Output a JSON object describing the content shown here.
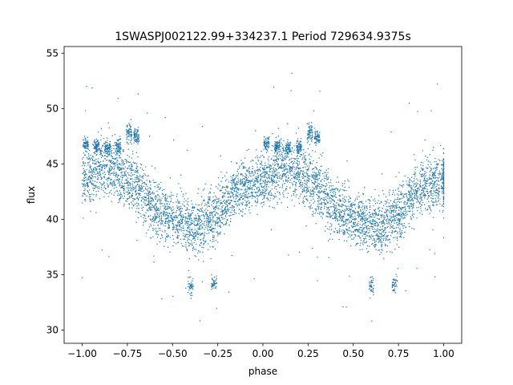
{
  "chart_data": {
    "type": "scatter",
    "title": "1SWASPJ002122.99+334237.1 Period 729634.9375s",
    "xlabel": "phase",
    "ylabel": "flux",
    "xlim": [
      -1.1,
      1.1
    ],
    "ylim": [
      28.8,
      55.6
    ],
    "x_ticks": [
      -1.0,
      -0.75,
      -0.5,
      -0.25,
      0.0,
      0.25,
      0.5,
      0.75,
      1.0
    ],
    "x_tick_labels": [
      "−1.00",
      "−0.75",
      "−0.50",
      "−0.25",
      "0.00",
      "0.25",
      "0.50",
      "0.75",
      "1.00"
    ],
    "y_ticks": [
      30,
      35,
      40,
      45,
      50,
      55
    ],
    "y_tick_labels": [
      "30",
      "35",
      "40",
      "45",
      "50",
      "55"
    ],
    "grid": false,
    "marker_color": "#1f77b4",
    "series": [
      {
        "x": [
          -1.0,
          -0.95,
          -0.9,
          -0.85,
          -0.8,
          -0.75,
          -0.7,
          -0.65,
          -0.6,
          -0.55,
          -0.5,
          -0.45,
          -0.4,
          -0.35,
          -0.3,
          -0.25,
          -0.2,
          -0.15,
          -0.1,
          -0.05,
          0.0,
          0.05,
          0.1,
          0.15,
          0.2,
          0.25,
          0.3,
          0.35,
          0.4,
          0.45,
          0.5,
          0.55,
          0.6,
          0.65,
          0.7,
          0.75,
          0.8,
          0.85,
          0.9,
          0.95,
          1.0
        ],
        "y": [
          43.5,
          44.0,
          44.8,
          44.5,
          44.0,
          43.5,
          43.0,
          42.0,
          41.0,
          40.5,
          40.0,
          39.8,
          39.5,
          39.3,
          40.0,
          40.5,
          41.5,
          42.5,
          43.0,
          43.3,
          43.5,
          44.0,
          44.8,
          44.5,
          44.0,
          43.5,
          43.0,
          42.0,
          41.0,
          40.5,
          40.0,
          39.8,
          39.5,
          39.3,
          40.0,
          40.5,
          41.5,
          42.5,
          43.0,
          43.3,
          43.5
        ],
        "spread": [
          1.6,
          1.7,
          1.8,
          1.8,
          1.7,
          1.7,
          1.8,
          1.8,
          1.7,
          1.6,
          1.6,
          1.6,
          1.6,
          1.7,
          1.7,
          1.7,
          1.6,
          1.6,
          1.6,
          1.6,
          1.6,
          1.7,
          1.8,
          1.8,
          1.7,
          1.7,
          1.8,
          1.8,
          1.7,
          1.6,
          1.6,
          1.6,
          1.6,
          1.7,
          1.7,
          1.7,
          1.6,
          1.6,
          1.6,
          1.6,
          1.6
        ]
      },
      {
        "x": [
          -0.98,
          -0.92,
          -0.86,
          -0.8,
          -0.74,
          -0.7,
          0.02,
          0.08,
          0.14,
          0.2,
          0.26,
          0.3
        ],
        "y": [
          46.8,
          46.6,
          46.4,
          46.5,
          47.8,
          47.5,
          46.8,
          46.6,
          46.4,
          46.5,
          47.8,
          47.5
        ],
        "spread": [
          0.4,
          0.4,
          0.4,
          0.5,
          0.6,
          0.5,
          0.4,
          0.4,
          0.4,
          0.5,
          0.6,
          0.5
        ]
      },
      {
        "x": [
          -0.4,
          -0.27,
          0.6,
          0.73
        ],
        "y": [
          34.0,
          34.2,
          34.0,
          34.2
        ],
        "spread": [
          0.6,
          0.5,
          0.6,
          0.5
        ]
      }
    ]
  }
}
